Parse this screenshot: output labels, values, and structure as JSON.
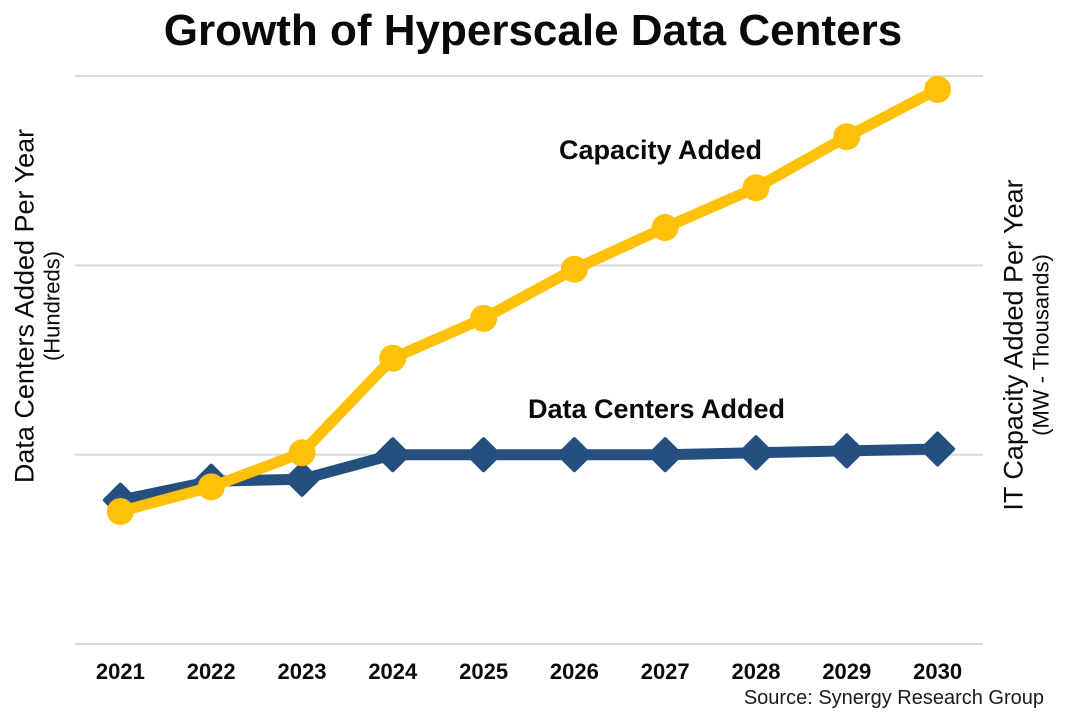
{
  "title": "Growth of Hyperscale Data Centers",
  "source": "Source: Synergy Research Group",
  "left_axis": {
    "label": "Data Centers Added Per Year",
    "sub_label": "(Hundreds)"
  },
  "right_axis": {
    "label": "IT Capacity Added Per Year",
    "sub_label": "(MW - Thousands)"
  },
  "annotations": {
    "capacity_label": "Capacity Added",
    "data_centers_label": "Data Centers Added"
  },
  "colors": {
    "capacity_line": "#FFC008",
    "data_centers_line": "#254F7F",
    "gridline": "#D9D9D9",
    "text": "#0A0A0A"
  },
  "chart_data": {
    "type": "line",
    "title": "Growth of Hyperscale Data Centers",
    "categories": [
      "2021",
      "2022",
      "2023",
      "2024",
      "2025",
      "2026",
      "2027",
      "2028",
      "2029",
      "2030"
    ],
    "series": [
      {
        "name": "Capacity Added",
        "axis": "right",
        "axis_label": "IT Capacity Added Per Year (MW - Thousands)",
        "color": "#FFC008",
        "marker": "circle",
        "values": [
          0.7,
          0.83,
          1.01,
          1.51,
          1.72,
          1.98,
          2.2,
          2.41,
          2.68,
          2.93
        ]
      },
      {
        "name": "Data Centers Added",
        "axis": "left",
        "axis_label": "Data Centers Added Per Year (Hundreds)",
        "color": "#254F7F",
        "marker": "diamond",
        "values": [
          0.76,
          0.86,
          0.87,
          1.0,
          1.0,
          1.0,
          1.0,
          1.01,
          1.02,
          1.03
        ]
      }
    ],
    "xlabel": "",
    "ylabel_left": "Data Centers Added Per Year (Hundreds)",
    "ylabel_right": "IT Capacity Added Per Year (MW - Thousands)",
    "ylim": [
      0,
      3.1
    ],
    "y_tick_labels_shown": false,
    "gridlines": "3 horizontal gridlines plus baseline, evenly spaced, no numeric tick labels",
    "legend": "inline bold text labels next to each line",
    "values_note": "y values estimated in gridline units (1 unit = one gridline interval above baseline); chart displays no numeric axis ticks",
    "source": "Source: Synergy Research Group"
  }
}
